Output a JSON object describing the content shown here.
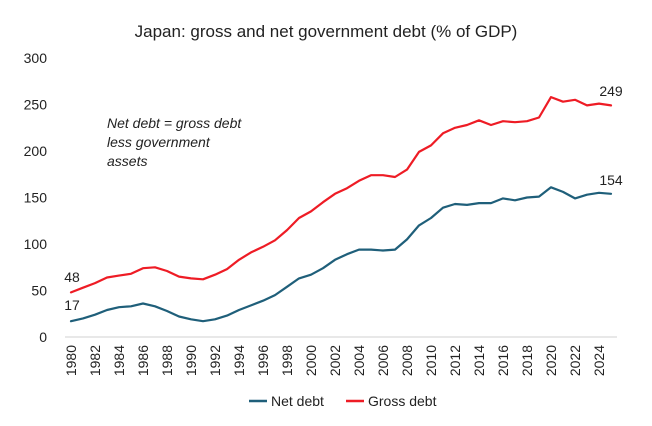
{
  "chart_data": {
    "type": "line",
    "title": "Japan: gross and net government debt (% of GDP)",
    "xlabel": "",
    "ylabel": "",
    "xlim": [
      1980,
      2025
    ],
    "ylim": [
      0,
      300
    ],
    "yticks": [
      0,
      50,
      100,
      150,
      200,
      250,
      300
    ],
    "xticks": [
      1980,
      1982,
      1984,
      1986,
      1988,
      1990,
      1992,
      1994,
      1996,
      1998,
      2000,
      2002,
      2004,
      2006,
      2008,
      2010,
      2012,
      2014,
      2016,
      2018,
      2020,
      2022,
      2024
    ],
    "x": [
      1980,
      1981,
      1982,
      1983,
      1984,
      1985,
      1986,
      1987,
      1988,
      1989,
      1990,
      1991,
      1992,
      1993,
      1994,
      1995,
      1996,
      1997,
      1998,
      1999,
      2000,
      2001,
      2002,
      2003,
      2004,
      2005,
      2006,
      2007,
      2008,
      2009,
      2010,
      2011,
      2012,
      2013,
      2014,
      2015,
      2016,
      2017,
      2018,
      2019,
      2020,
      2021,
      2022,
      2023,
      2024,
      2025
    ],
    "series": [
      {
        "name": "Net debt",
        "color": "#1f5f7a",
        "values": [
          17,
          20,
          24,
          29,
          32,
          33,
          36,
          33,
          28,
          22,
          19,
          17,
          19,
          23,
          29,
          34,
          39,
          45,
          54,
          63,
          67,
          74,
          83,
          89,
          94,
          94,
          93,
          94,
          105,
          120,
          128,
          139,
          143,
          142,
          144,
          144,
          149,
          147,
          150,
          151,
          161,
          156,
          149,
          153,
          155,
          154
        ]
      },
      {
        "name": "Gross debt",
        "color": "#ee1c25",
        "values": [
          48,
          53,
          58,
          64,
          66,
          68,
          74,
          75,
          71,
          65,
          63,
          62,
          67,
          73,
          83,
          91,
          97,
          104,
          115,
          128,
          135,
          145,
          154,
          160,
          168,
          174,
          174,
          172,
          180,
          199,
          206,
          219,
          225,
          228,
          233,
          228,
          232,
          231,
          232,
          236,
          258,
          253,
          255,
          249,
          251,
          249
        ]
      }
    ],
    "annotations": {
      "note": [
        "Net debt = gross debt",
        "less government",
        "assets"
      ],
      "net_start": "17",
      "gross_start": "48",
      "net_end": "154",
      "gross_end": "249"
    },
    "legend": {
      "position": "bottom",
      "items": [
        "Net debt",
        "Gross debt"
      ]
    },
    "grid": false
  }
}
